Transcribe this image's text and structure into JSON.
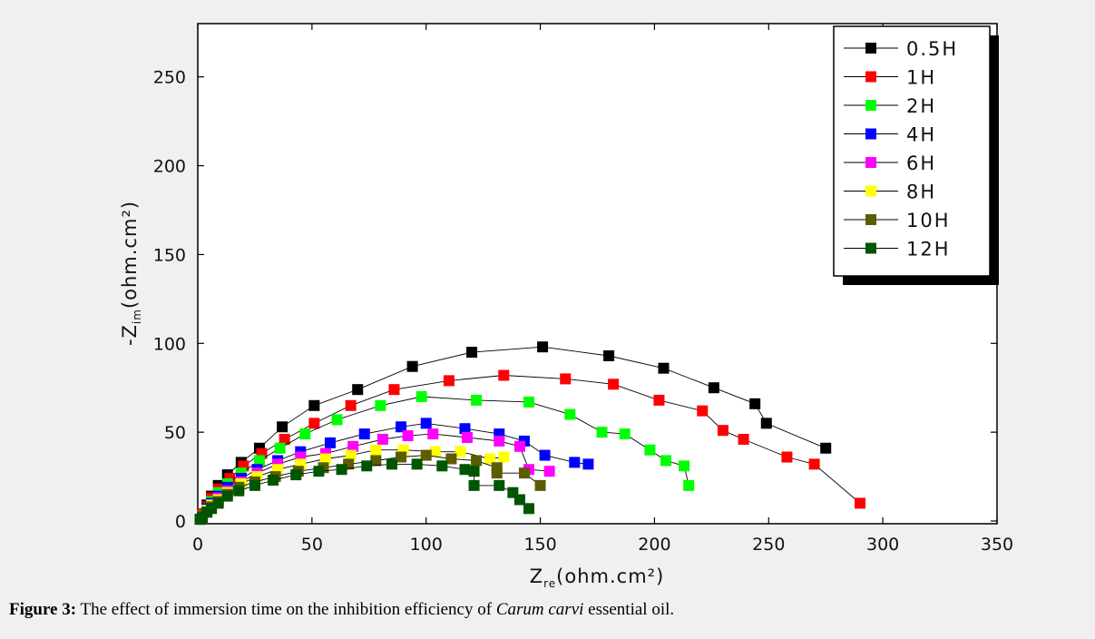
{
  "caption": {
    "label": "Figure 3:",
    "text_before": "The effect of immersion time on the inhibition efficiency of",
    "species": "Carum carvi",
    "text_after": "essential oil."
  },
  "chart_data": {
    "type": "scatter",
    "xlabel_main": "Z",
    "xlabel_sub": "re",
    "xlabel_unit": "(ohm.cm²)",
    "ylabel_main": "-Z",
    "ylabel_sub": "im",
    "ylabel_unit": "(ohm.cm²)",
    "xlim": [
      0,
      350
    ],
    "ylim": [
      0,
      280
    ],
    "xticks": [
      0,
      50,
      100,
      150,
      200,
      250,
      300,
      350
    ],
    "yticks": [
      0,
      50,
      100,
      150,
      200,
      250
    ],
    "grid": false,
    "legend_position": "top-right",
    "series": [
      {
        "name": "0.5H",
        "color": "#000000",
        "points": [
          [
            1,
            1
          ],
          [
            2,
            4
          ],
          [
            4,
            9
          ],
          [
            6,
            14
          ],
          [
            9,
            20
          ],
          [
            13,
            26
          ],
          [
            19,
            33
          ],
          [
            27,
            41
          ],
          [
            37,
            53
          ],
          [
            51,
            65
          ],
          [
            70,
            74
          ],
          [
            94,
            87
          ],
          [
            120,
            95
          ],
          [
            151,
            98
          ],
          [
            180,
            93
          ],
          [
            204,
            86
          ],
          [
            226,
            75
          ],
          [
            244,
            66
          ],
          [
            249,
            55
          ],
          [
            275,
            41
          ]
        ]
      },
      {
        "name": "1H",
        "color": "#ff0000",
        "points": [
          [
            1,
            1
          ],
          [
            2,
            4
          ],
          [
            4,
            8
          ],
          [
            6,
            13
          ],
          [
            9,
            18
          ],
          [
            14,
            24
          ],
          [
            20,
            31
          ],
          [
            28,
            38
          ],
          [
            38,
            46
          ],
          [
            51,
            55
          ],
          [
            67,
            65
          ],
          [
            86,
            74
          ],
          [
            110,
            79
          ],
          [
            134,
            82
          ],
          [
            161,
            80
          ],
          [
            182,
            77
          ],
          [
            202,
            68
          ],
          [
            221,
            62
          ],
          [
            230,
            51
          ],
          [
            239,
            46
          ],
          [
            258,
            36
          ],
          [
            270,
            32
          ],
          [
            290,
            10
          ]
        ]
      },
      {
        "name": "2H",
        "color": "#00ff00",
        "points": [
          [
            1,
            1
          ],
          [
            2,
            3
          ],
          [
            4,
            7
          ],
          [
            6,
            11
          ],
          [
            9,
            16
          ],
          [
            13,
            21
          ],
          [
            19,
            27
          ],
          [
            27,
            34
          ],
          [
            36,
            41
          ],
          [
            47,
            49
          ],
          [
            61,
            57
          ],
          [
            80,
            65
          ],
          [
            98,
            70
          ],
          [
            122,
            68
          ],
          [
            145,
            67
          ],
          [
            163,
            60
          ],
          [
            177,
            50
          ],
          [
            187,
            49
          ],
          [
            198,
            40
          ],
          [
            205,
            34
          ],
          [
            213,
            31
          ],
          [
            215,
            20
          ]
        ]
      },
      {
        "name": "4H",
        "color": "#0000ff",
        "points": [
          [
            1,
            1
          ],
          [
            2,
            3
          ],
          [
            4,
            7
          ],
          [
            6,
            10
          ],
          [
            9,
            14
          ],
          [
            13,
            19
          ],
          [
            19,
            24
          ],
          [
            26,
            29
          ],
          [
            35,
            34
          ],
          [
            45,
            39
          ],
          [
            58,
            44
          ],
          [
            73,
            49
          ],
          [
            89,
            53
          ],
          [
            100,
            55
          ],
          [
            117,
            52
          ],
          [
            132,
            49
          ],
          [
            143,
            45
          ],
          [
            152,
            37
          ],
          [
            165,
            33
          ],
          [
            171,
            32
          ]
        ]
      },
      {
        "name": "6H",
        "color": "#ff00ff",
        "points": [
          [
            1,
            1
          ],
          [
            2,
            3
          ],
          [
            4,
            6
          ],
          [
            6,
            9
          ],
          [
            9,
            13
          ],
          [
            13,
            17
          ],
          [
            19,
            22
          ],
          [
            26,
            27
          ],
          [
            35,
            32
          ],
          [
            45,
            36
          ],
          [
            56,
            38
          ],
          [
            68,
            42
          ],
          [
            81,
            46
          ],
          [
            92,
            48
          ],
          [
            103,
            49
          ],
          [
            118,
            47
          ],
          [
            132,
            45
          ],
          [
            141,
            42
          ],
          [
            145,
            29
          ],
          [
            154,
            28
          ]
        ]
      },
      {
        "name": "8H",
        "color": "#ffff00",
        "points": [
          [
            1,
            1
          ],
          [
            2,
            3
          ],
          [
            4,
            6
          ],
          [
            6,
            9
          ],
          [
            9,
            12
          ],
          [
            13,
            16
          ],
          [
            19,
            21
          ],
          [
            26,
            25
          ],
          [
            35,
            29
          ],
          [
            45,
            32
          ],
          [
            56,
            35
          ],
          [
            67,
            37
          ],
          [
            78,
            40
          ],
          [
            90,
            40
          ],
          [
            104,
            39
          ],
          [
            115,
            39
          ],
          [
            128,
            35
          ],
          [
            134,
            36
          ]
        ]
      },
      {
        "name": "10H",
        "color": "#5c5c00",
        "points": [
          [
            1,
            1
          ],
          [
            2,
            3
          ],
          [
            4,
            5
          ],
          [
            6,
            8
          ],
          [
            9,
            11
          ],
          [
            13,
            15
          ],
          [
            18,
            19
          ],
          [
            25,
            22
          ],
          [
            34,
            25
          ],
          [
            44,
            28
          ],
          [
            55,
            30
          ],
          [
            66,
            32
          ],
          [
            78,
            34
          ],
          [
            89,
            36
          ],
          [
            100,
            37
          ],
          [
            111,
            35
          ],
          [
            122,
            34
          ],
          [
            131,
            30
          ],
          [
            131,
            27
          ],
          [
            143,
            27
          ],
          [
            150,
            20
          ]
        ]
      },
      {
        "name": "12H",
        "color": "#005500",
        "points": [
          [
            1,
            1
          ],
          [
            2,
            2
          ],
          [
            4,
            5
          ],
          [
            6,
            7
          ],
          [
            9,
            10
          ],
          [
            13,
            14
          ],
          [
            18,
            17
          ],
          [
            25,
            20
          ],
          [
            33,
            23
          ],
          [
            43,
            26
          ],
          [
            53,
            28
          ],
          [
            63,
            29
          ],
          [
            74,
            31
          ],
          [
            85,
            32
          ],
          [
            96,
            32
          ],
          [
            107,
            31
          ],
          [
            117,
            29
          ],
          [
            121,
            28
          ],
          [
            121,
            20
          ],
          [
            132,
            20
          ],
          [
            138,
            16
          ],
          [
            141,
            12
          ],
          [
            145,
            7
          ]
        ]
      }
    ]
  }
}
